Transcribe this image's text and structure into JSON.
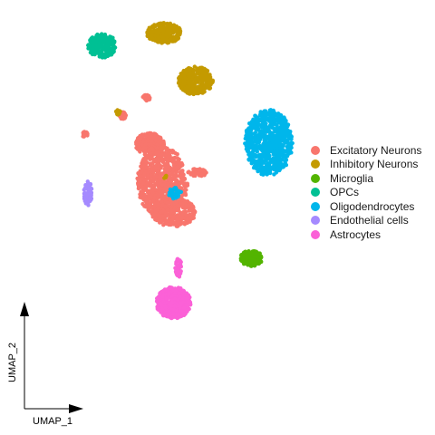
{
  "chart_data": {
    "type": "scatter",
    "title": "",
    "xlabel": "UMAP_1",
    "ylabel": "UMAP_2",
    "legend_position": "right",
    "grid": false,
    "series": [
      {
        "name": "Excitatory Neurons",
        "color": "#F8766D",
        "clusters": [
          {
            "x": -0.5,
            "y": 0.0,
            "rx": 1.6,
            "ry": 2.2,
            "n": 700
          },
          {
            "x": -1.3,
            "y": 2.4,
            "rx": 0.9,
            "ry": 0.7,
            "n": 220
          },
          {
            "x": 0.2,
            "y": -1.9,
            "rx": 1.4,
            "ry": 0.9,
            "n": 280
          },
          {
            "x": 1.7,
            "y": 0.6,
            "rx": 0.6,
            "ry": 0.25,
            "n": 60
          },
          {
            "x": -3.0,
            "y": 4.2,
            "rx": 0.2,
            "ry": 0.25,
            "n": 35
          },
          {
            "x": -1.5,
            "y": 5.3,
            "rx": 0.25,
            "ry": 0.2,
            "n": 30
          },
          {
            "x": -5.4,
            "y": 3.0,
            "rx": 0.18,
            "ry": 0.2,
            "n": 25
          }
        ]
      },
      {
        "name": "Inhibitory Neurons",
        "color": "#C49A00",
        "clusters": [
          {
            "x": -0.4,
            "y": 9.4,
            "rx": 1.1,
            "ry": 0.65,
            "n": 260
          },
          {
            "x": 1.6,
            "y": 6.4,
            "rx": 1.1,
            "ry": 0.9,
            "n": 300
          },
          {
            "x": -3.3,
            "y": 4.4,
            "rx": 0.15,
            "ry": 0.15,
            "n": 15
          },
          {
            "x": -0.3,
            "y": 0.3,
            "rx": 0.1,
            "ry": 0.15,
            "n": 6
          }
        ]
      },
      {
        "name": "Microglia",
        "color": "#53B400",
        "clusters": [
          {
            "x": 5.1,
            "y": -4.8,
            "rx": 0.7,
            "ry": 0.5,
            "n": 150
          }
        ]
      },
      {
        "name": "OPCs",
        "color": "#00C094",
        "clusters": [
          {
            "x": -4.3,
            "y": 8.6,
            "rx": 0.9,
            "ry": 0.75,
            "n": 230
          }
        ]
      },
      {
        "name": "Oligodendrocytes",
        "color": "#00B6EB",
        "clusters": [
          {
            "x": 6.2,
            "y": 2.5,
            "rx": 1.5,
            "ry": 2.1,
            "n": 700
          },
          {
            "x": 0.3,
            "y": -0.7,
            "rx": 0.4,
            "ry": 0.4,
            "n": 40
          }
        ]
      },
      {
        "name": "Endothelial cells",
        "color": "#A58AFF",
        "clusters": [
          {
            "x": -5.2,
            "y": -0.7,
            "rx": 0.25,
            "ry": 0.8,
            "n": 70
          }
        ]
      },
      {
        "name": "Astrocytes",
        "color": "#FB61D7",
        "clusters": [
          {
            "x": 0.2,
            "y": -7.6,
            "rx": 1.1,
            "ry": 1.0,
            "n": 480
          },
          {
            "x": 0.5,
            "y": -5.4,
            "rx": 0.2,
            "ry": 0.7,
            "n": 40
          }
        ]
      }
    ]
  }
}
